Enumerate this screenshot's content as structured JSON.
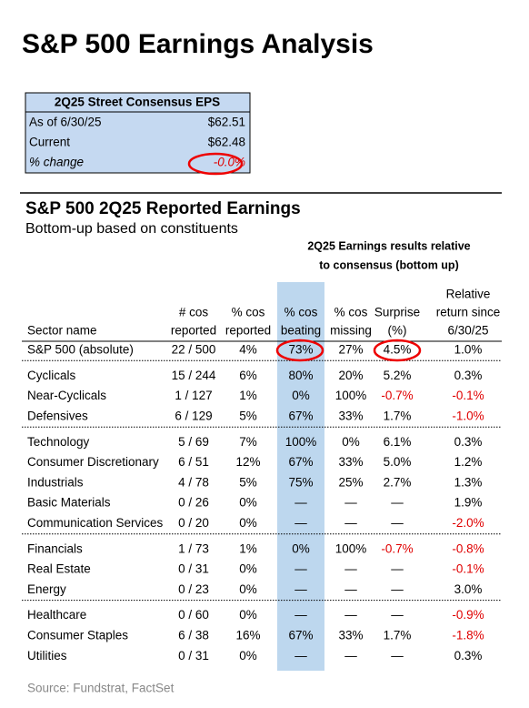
{
  "title": "S&P 500 Earnings Analysis",
  "consensus_box": {
    "header": "2Q25 Street Consensus EPS",
    "rows": [
      [
        "As of 6/30/25",
        "$62.51"
      ],
      [
        "Current",
        "$62.48"
      ],
      [
        "% change",
        "-0.0%"
      ]
    ]
  },
  "table": {
    "title": "S&P 500 2Q25 Reported Earnings",
    "subtitle": "Bottom-up based on constituents",
    "group_header": [
      "2Q25 Earnings results relative",
      "to consensus (bottom up)"
    ],
    "columns": [
      [
        "Sector name"
      ],
      [
        "# cos",
        "reported"
      ],
      [
        "% cos",
        "reported"
      ],
      [
        "% cos",
        "beating"
      ],
      [
        "% cos",
        "missing"
      ],
      [
        "Surprise",
        "(%)"
      ],
      [
        "Relative",
        "return since",
        "6/30/25"
      ]
    ],
    "groups": [
      [
        [
          "S&P 500 (absolute)",
          "22 / 500",
          "4%",
          "73%",
          "27%",
          "4.5%",
          "1.0%"
        ]
      ],
      [
        [
          "Cyclicals",
          "15 / 244",
          "6%",
          "80%",
          "20%",
          "5.2%",
          "0.3%"
        ],
        [
          "Near-Cyclicals",
          "1 / 127",
          "1%",
          "0%",
          "100%",
          "-0.7%",
          "-0.1%"
        ],
        [
          "Defensives",
          "6 / 129",
          "5%",
          "67%",
          "33%",
          "1.7%",
          "-1.0%"
        ]
      ],
      [
        [
          "Technology",
          "5 / 69",
          "7%",
          "100%",
          "0%",
          "6.1%",
          "0.3%"
        ],
        [
          "Consumer Discretionary",
          "6 / 51",
          "12%",
          "67%",
          "33%",
          "5.0%",
          "1.2%"
        ],
        [
          "Industrials",
          "4 / 78",
          "5%",
          "75%",
          "25%",
          "2.7%",
          "1.3%"
        ],
        [
          "Basic Materials",
          "0 / 26",
          "0%",
          "—",
          "—",
          "—",
          "1.9%"
        ],
        [
          "Communication Services",
          "0 / 20",
          "0%",
          "—",
          "—",
          "—",
          "-2.0%"
        ]
      ],
      [
        [
          "Financials",
          "1 / 73",
          "1%",
          "0%",
          "100%",
          "-0.7%",
          "-0.8%"
        ],
        [
          "Real Estate",
          "0 / 31",
          "0%",
          "—",
          "—",
          "—",
          "-0.1%"
        ],
        [
          "Energy",
          "0 / 23",
          "0%",
          "—",
          "—",
          "—",
          "3.0%"
        ]
      ],
      [
        [
          "Healthcare",
          "0 / 60",
          "0%",
          "—",
          "—",
          "—",
          "-0.9%"
        ],
        [
          "Consumer Staples",
          "6 / 38",
          "16%",
          "67%",
          "33%",
          "1.7%",
          "-1.8%"
        ],
        [
          "Utilities",
          "0 / 31",
          "0%",
          "—",
          "—",
          "—",
          "0.3%"
        ]
      ]
    ]
  },
  "source": "Source: Fundstrat, FactSet"
}
